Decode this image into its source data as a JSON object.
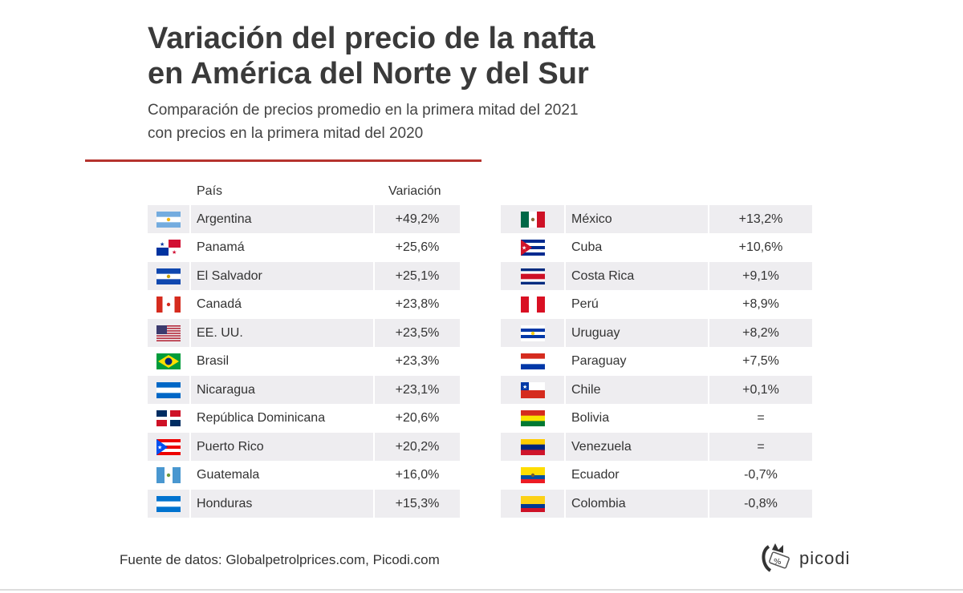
{
  "title_line1": "Variación del precio de la nafta",
  "title_line2": "en América del Norte y del Sur",
  "subtitle_line1": "Comparación de precios promedio en la primera mitad del 2021",
  "subtitle_line2": "con precios en la primera mitad del 2020",
  "header_country": "País",
  "header_variation": "Variación",
  "source": "Fuente de datos: Globalpetrolprices.com, Picodi.com",
  "logo": "picodi",
  "accent_color": "#b5332e",
  "chart_data": {
    "type": "table",
    "columns": [
      "País",
      "Variación"
    ],
    "left": [
      {
        "country": "Argentina",
        "value": "+49,2%",
        "flag": {
          "dir": "h",
          "colors": [
            "#74acdf",
            "#ffffff",
            "#74acdf"
          ],
          "emblem": "#f6b40e"
        }
      },
      {
        "country": "Panamá",
        "value": "+25,6%",
        "flag": {
          "dir": "q",
          "colors": [
            "#ffffff",
            "#d21034",
            "#0033a0",
            "#ffffff"
          ]
        }
      },
      {
        "country": "El Salvador",
        "value": "+25,1%",
        "flag": {
          "dir": "h",
          "colors": [
            "#0f47af",
            "#ffffff",
            "#0f47af"
          ],
          "emblem": "#c8a000"
        }
      },
      {
        "country": "Canadá",
        "value": "+23,8%",
        "flag": {
          "dir": "v",
          "colors": [
            "#d52b1e",
            "#ffffff",
            "#ffffff",
            "#d52b1e"
          ],
          "emblem": "#d52b1e"
        }
      },
      {
        "country": "EE. UU.",
        "value": "+23,5%",
        "flag": {
          "dir": "us",
          "colors": [
            "#b22234",
            "#ffffff",
            "#3c3b6e"
          ]
        }
      },
      {
        "country": "Brasil",
        "value": "+23,3%",
        "flag": {
          "dir": "br",
          "colors": [
            "#009c3b",
            "#ffdf00",
            "#002776"
          ]
        }
      },
      {
        "country": "Nicaragua",
        "value": "+23,1%",
        "flag": {
          "dir": "h",
          "colors": [
            "#0067c6",
            "#ffffff",
            "#0067c6"
          ]
        }
      },
      {
        "country": "República Dominicana",
        "value": "+20,6%",
        "flag": {
          "dir": "q",
          "colors": [
            "#002d62",
            "#ce1126",
            "#ce1126",
            "#002d62"
          ],
          "cross": "#ffffff"
        }
      },
      {
        "country": "Puerto Rico",
        "value": "+20,2%",
        "flag": {
          "dir": "h",
          "colors": [
            "#ed0000",
            "#ffffff",
            "#ed0000",
            "#ffffff",
            "#ed0000"
          ],
          "tri": "#0050f0"
        }
      },
      {
        "country": "Guatemala",
        "value": "+16,0%",
        "flag": {
          "dir": "v",
          "colors": [
            "#4997d0",
            "#ffffff",
            "#4997d0"
          ],
          "emblem": "#6c9a3a"
        }
      },
      {
        "country": "Honduras",
        "value": "+15,3%",
        "flag": {
          "dir": "h",
          "colors": [
            "#0073cf",
            "#ffffff",
            "#0073cf"
          ]
        }
      }
    ],
    "right": [
      {
        "country": "México",
        "value": "+13,2%",
        "flag": {
          "dir": "v",
          "colors": [
            "#006847",
            "#ffffff",
            "#ce1126"
          ],
          "emblem": "#8c6d3a"
        }
      },
      {
        "country": "Cuba",
        "value": "+10,6%",
        "flag": {
          "dir": "h",
          "colors": [
            "#002a8f",
            "#ffffff",
            "#002a8f",
            "#ffffff",
            "#002a8f"
          ],
          "tri": "#cf142b"
        }
      },
      {
        "country": "Costa Rica",
        "value": "+9,1%",
        "flag": {
          "dir": "h",
          "colors": [
            "#002b7f",
            "#ffffff",
            "#ce1126",
            "#ce1126",
            "#ffffff",
            "#002b7f"
          ]
        }
      },
      {
        "country": "Perú",
        "value": "+8,9%",
        "flag": {
          "dir": "v",
          "colors": [
            "#d91023",
            "#ffffff",
            "#d91023"
          ]
        }
      },
      {
        "country": "Uruguay",
        "value": "+8,2%",
        "flag": {
          "dir": "h",
          "colors": [
            "#ffffff",
            "#0038a8",
            "#ffffff",
            "#0038a8",
            "#ffffff"
          ],
          "emblem": "#fcd116"
        }
      },
      {
        "country": "Paraguay",
        "value": "+7,5%",
        "flag": {
          "dir": "h",
          "colors": [
            "#d52b1e",
            "#ffffff",
            "#0038a8"
          ]
        }
      },
      {
        "country": "Chile",
        "value": "+0,1%",
        "flag": {
          "dir": "cl",
          "colors": [
            "#ffffff",
            "#d52b1e",
            "#0039a6"
          ]
        }
      },
      {
        "country": "Bolivia",
        "value": "=",
        "flag": {
          "dir": "h",
          "colors": [
            "#d52b1e",
            "#f9e300",
            "#007934"
          ]
        }
      },
      {
        "country": "Venezuela",
        "value": "=",
        "flag": {
          "dir": "h",
          "colors": [
            "#ffcc00",
            "#00247d",
            "#cf142b"
          ]
        }
      },
      {
        "country": "Ecuador",
        "value": "-0,7%",
        "flag": {
          "dir": "h",
          "colors": [
            "#ffdd00",
            "#ffdd00",
            "#034ea2",
            "#ed1c24"
          ],
          "emblem": "#7a5c2e"
        }
      },
      {
        "country": "Colombia",
        "value": "-0,8%",
        "flag": {
          "dir": "h",
          "colors": [
            "#fcd116",
            "#fcd116",
            "#003893",
            "#ce1126"
          ]
        }
      }
    ]
  }
}
